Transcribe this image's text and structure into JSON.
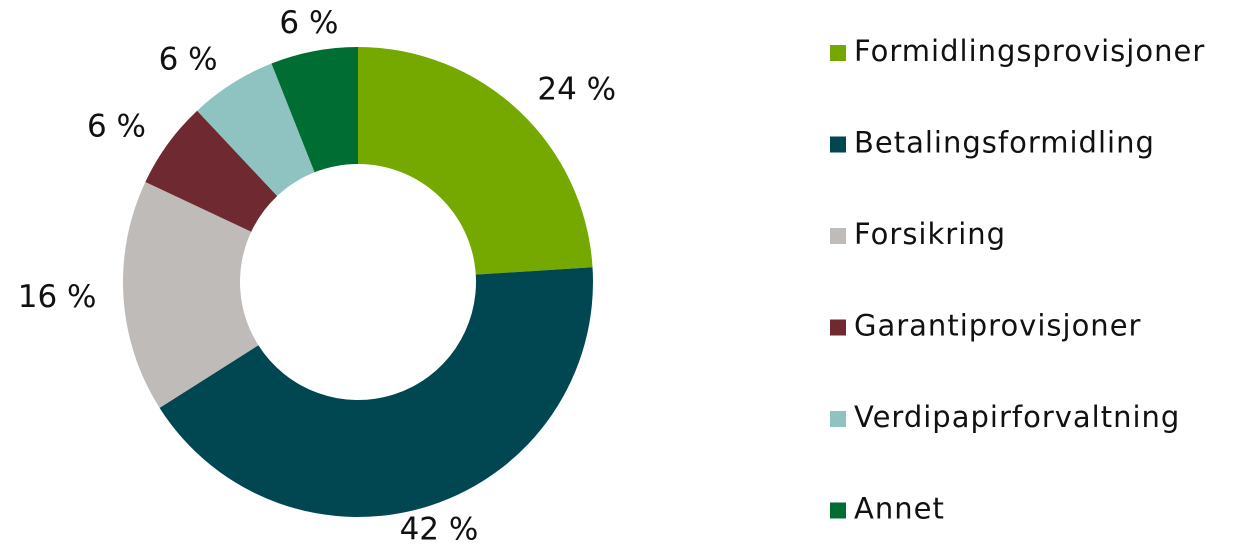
{
  "chart_data": {
    "type": "pie",
    "categories": [
      "Formidlingsprovisjoner",
      "Betalingsformidling",
      "Forsikring",
      "Garantiprovisjoner",
      "Verdipapirforvaltning",
      "Annet"
    ],
    "values": [
      24,
      42,
      16,
      6,
      6,
      6
    ],
    "value_labels": [
      "24 %",
      "42 %",
      "16 %",
      "6 %",
      "6 %",
      "6 %"
    ],
    "colors": [
      "#76a900",
      "#004752",
      "#bfbbb8",
      "#6e2a30",
      "#8fc3c1",
      "#006d33"
    ],
    "donut": true,
    "legend": "right"
  }
}
